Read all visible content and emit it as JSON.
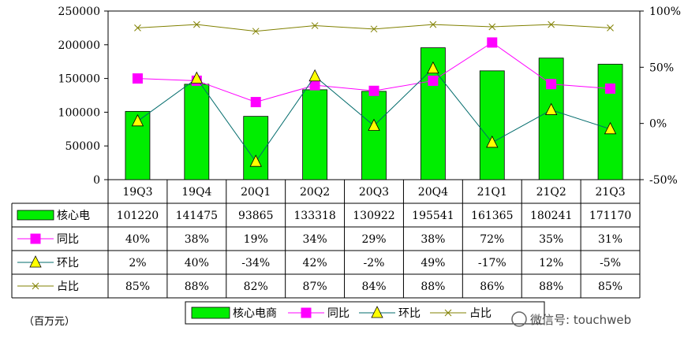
{
  "chart_data": {
    "type": "bar",
    "categories": [
      "19Q3",
      "19Q4",
      "20Q1",
      "20Q2",
      "20Q3",
      "20Q4",
      "21Q1",
      "21Q2",
      "21Q3"
    ],
    "series": [
      {
        "name": "核心电商",
        "axis": "left",
        "kind": "bar",
        "color": "#00ee00",
        "values": [
          101220,
          141475,
          93865,
          133318,
          130922,
          195541,
          161365,
          180241,
          171170
        ],
        "table_label": "核心电",
        "table_values": [
          "101220",
          "141475",
          "93865",
          "133318",
          "130922",
          "195541",
          "161365",
          "180241",
          "171170"
        ]
      },
      {
        "name": "同比",
        "axis": "right",
        "kind": "line",
        "marker": "square",
        "color": "#ff00ff",
        "values": [
          40,
          38,
          19,
          34,
          29,
          38,
          72,
          35,
          31
        ],
        "table_label": "同比",
        "table_values": [
          "40%",
          "38%",
          "19%",
          "34%",
          "29%",
          "38%",
          "72%",
          "35%",
          "31%"
        ]
      },
      {
        "name": "环比",
        "axis": "right",
        "kind": "line",
        "marker": "triangle",
        "color": "#006b6b",
        "marker_color": "#ffff00",
        "values": [
          2,
          40,
          -34,
          42,
          -2,
          49,
          -17,
          12,
          -5
        ],
        "table_label": "环比",
        "table_values": [
          "2%",
          "40%",
          "-34%",
          "42%",
          "-2%",
          "49%",
          "-17%",
          "12%",
          "-5%"
        ]
      },
      {
        "name": "占比",
        "axis": "right",
        "kind": "line",
        "marker": "x",
        "color": "#808000",
        "values": [
          85,
          88,
          82,
          87,
          84,
          88,
          86,
          88,
          85
        ],
        "table_label": "占比",
        "table_values": [
          "85%",
          "88%",
          "82%",
          "87%",
          "84%",
          "88%",
          "86%",
          "88%",
          "85%"
        ]
      }
    ],
    "y_left": {
      "min": 0,
      "max": 250000,
      "ticks": [
        "0",
        "50000",
        "100000",
        "150000",
        "200000",
        "250000"
      ]
    },
    "y_right": {
      "min": -50,
      "max": 100,
      "ticks": [
        "-50%",
        "0%",
        "50%",
        "100%"
      ]
    },
    "unit_label": "（百万元）",
    "legend_position": "bottom",
    "grid": false
  },
  "watermark": "微信号: touchweb"
}
